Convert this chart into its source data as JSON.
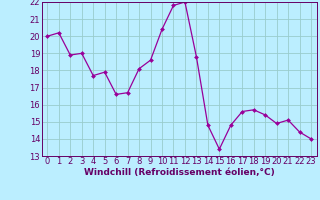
{
  "x": [
    0,
    1,
    2,
    3,
    4,
    5,
    6,
    7,
    8,
    9,
    10,
    11,
    12,
    13,
    14,
    15,
    16,
    17,
    18,
    19,
    20,
    21,
    22,
    23
  ],
  "y": [
    20.0,
    20.2,
    18.9,
    19.0,
    17.7,
    17.9,
    16.6,
    16.7,
    18.1,
    18.6,
    20.4,
    21.8,
    22.0,
    18.8,
    14.8,
    13.4,
    14.8,
    15.6,
    15.7,
    15.4,
    14.9,
    15.1,
    14.4,
    14.0
  ],
  "line_color": "#990099",
  "marker_color": "#990099",
  "bg_color": "#bbeeff",
  "grid_color": "#99cccc",
  "xlabel": "Windchill (Refroidissement éolien,°C)",
  "xlabel_color": "#660066",
  "tick_color": "#660066",
  "ylim": [
    13,
    22
  ],
  "xlim_min": -0.5,
  "xlim_max": 23.5,
  "yticks": [
    13,
    14,
    15,
    16,
    17,
    18,
    19,
    20,
    21,
    22
  ],
  "xticks": [
    0,
    1,
    2,
    3,
    4,
    5,
    6,
    7,
    8,
    9,
    10,
    11,
    12,
    13,
    14,
    15,
    16,
    17,
    18,
    19,
    20,
    21,
    22,
    23
  ],
  "label_fontsize": 6.5,
  "tick_fontsize": 6.0
}
